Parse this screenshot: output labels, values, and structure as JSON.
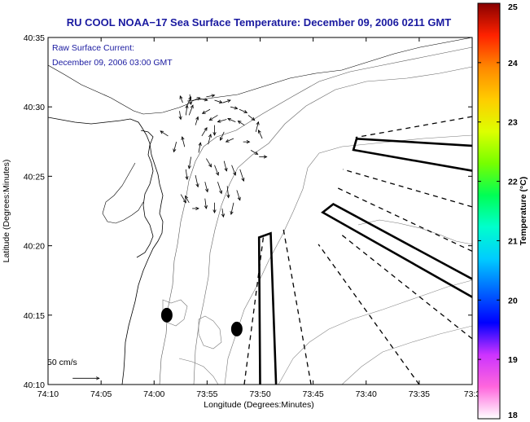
{
  "chart_data": {
    "type": "scatter",
    "title": "RU COOL  NOAA−17  Sea Surface Temperature:  December 09, 2006 0211 GMT",
    "annotation_lines": [
      "Raw Surface Current:",
      "December 09, 2006 03:00 GMT"
    ],
    "xlabel": "Longitude (Degrees:Minutes)",
    "ylabel": "Latitude (Degrees:Minutes)",
    "xlim": [
      -74.1667,
      -73.5
    ],
    "ylim": [
      40.1667,
      40.5833
    ],
    "x_ticks": [
      {
        "value": -74.1667,
        "label": "74:10"
      },
      {
        "value": -74.0833,
        "label": "74:05"
      },
      {
        "value": -74.0,
        "label": "74:00"
      },
      {
        "value": -73.9167,
        "label": "73:55"
      },
      {
        "value": -73.8333,
        "label": "73:50"
      },
      {
        "value": -73.75,
        "label": "73:45"
      },
      {
        "value": -73.6667,
        "label": "73:40"
      },
      {
        "value": -73.5833,
        "label": "73:35"
      },
      {
        "value": -73.5,
        "label": "73:3"
      }
    ],
    "y_ticks": [
      {
        "value": 40.1667,
        "label": "40:10"
      },
      {
        "value": 40.25,
        "label": "40:15"
      },
      {
        "value": 40.3333,
        "label": "40:20"
      },
      {
        "value": 40.4167,
        "label": "40:25"
      },
      {
        "value": 40.5,
        "label": "40:30"
      },
      {
        "value": 40.5833,
        "label": "40:35"
      }
    ],
    "colorbar": {
      "label": "Temperature (°C)",
      "range": [
        18,
        25
      ],
      "ticks": [
        "18",
        "19",
        "20",
        "21",
        "22",
        "23",
        "24",
        "25"
      ],
      "colors": [
        "#ffffff",
        "#ff66dd",
        "#cc33ff",
        "#0000ff",
        "#0066ff",
        "#00ccff",
        "#00ffcc",
        "#00ff55",
        "#77ff00",
        "#ddff00",
        "#ffcc00",
        "#ff8800",
        "#ff2200",
        "#880000"
      ]
    },
    "scale_arrow_label": "50 cm/s",
    "scale_arrow": {
      "x": -74.128,
      "y": 40.1742,
      "u": 0.0417,
      "v": 0
    },
    "buoys": [
      {
        "lon": -73.98,
        "lat": 40.25
      },
      {
        "lon": -73.87,
        "lat": 40.2333
      }
    ],
    "outer_box": [
      [
        -73.9633,
        40.2417
      ],
      [
        -73.86,
        40.2417
      ],
      [
        -73.86,
        40.2333
      ],
      [
        -73.9633,
        40.2333
      ]
    ],
    "lanes": [
      {
        "style": "solid",
        "points": [
          [
            -73.8333,
            40.1667
          ],
          [
            -73.835,
            40.3433
          ],
          [
            -73.8167,
            40.3483
          ],
          [
            -73.8083,
            40.1667
          ]
        ]
      },
      {
        "style": "solid",
        "points": [
          [
            -73.5,
            40.2717
          ],
          [
            -73.735,
            40.3733
          ],
          [
            -73.7183,
            40.3833
          ],
          [
            -73.5,
            40.2933
          ]
        ]
      },
      {
        "style": "solid",
        "points": [
          [
            -73.5,
            40.4533
          ],
          [
            -73.6817,
            40.4617
          ],
          [
            -73.6867,
            40.4483
          ],
          [
            -73.5,
            40.4233
          ]
        ]
      },
      {
        "style": "dashed",
        "points": [
          [
            -73.8583,
            40.1667
          ],
          [
            -73.8283,
            40.3433
          ]
        ]
      },
      {
        "style": "dashed",
        "points": [
          [
            -73.7533,
            40.1667
          ],
          [
            -73.7967,
            40.3533
          ]
        ]
      },
      {
        "style": "dashed",
        "points": [
          [
            -73.5833,
            40.1667
          ],
          [
            -73.7417,
            40.335
          ]
        ]
      },
      {
        "style": "dashed",
        "points": [
          [
            -73.5,
            40.2217
          ],
          [
            -73.7083,
            40.3483
          ]
        ]
      },
      {
        "style": "dashed",
        "points": [
          [
            -73.5,
            40.3267
          ],
          [
            -73.7133,
            40.4033
          ]
        ]
      },
      {
        "style": "dashed",
        "points": [
          [
            -73.5,
            40.38
          ],
          [
            -73.7033,
            40.425
          ]
        ]
      },
      {
        "style": "dashed",
        "points": [
          [
            -73.5,
            40.4883
          ],
          [
            -73.6833,
            40.4633
          ]
        ]
      }
    ],
    "current_vectors": [
      {
        "x": -73.955,
        "y": 40.505,
        "u": -0.004,
        "v": 0.008
      },
      {
        "x": -73.948,
        "y": 40.502,
        "u": 0.006,
        "v": 0.01
      },
      {
        "x": -73.94,
        "y": 40.507,
        "u": 0.012,
        "v": 0.004
      },
      {
        "x": -73.93,
        "y": 40.51,
        "u": 0.014,
        "v": -0.002
      },
      {
        "x": -73.918,
        "y": 40.512,
        "u": 0.013,
        "v": 0.002
      },
      {
        "x": -73.905,
        "y": 40.508,
        "u": 0.012,
        "v": -0.003
      },
      {
        "x": -73.892,
        "y": 40.505,
        "u": 0.012,
        "v": 0.003
      },
      {
        "x": -73.88,
        "y": 40.5,
        "u": 0.011,
        "v": -0.002
      },
      {
        "x": -73.866,
        "y": 40.497,
        "u": 0.012,
        "v": -0.004
      },
      {
        "x": -73.852,
        "y": 40.49,
        "u": 0.01,
        "v": -0.006
      },
      {
        "x": -73.912,
        "y": 40.497,
        "u": -0.012,
        "v": -0.005
      },
      {
        "x": -73.9,
        "y": 40.49,
        "u": -0.013,
        "v": -0.006
      },
      {
        "x": -73.886,
        "y": 40.485,
        "u": -0.014,
        "v": -0.003
      },
      {
        "x": -73.872,
        "y": 40.482,
        "u": -0.012,
        "v": 0.004
      },
      {
        "x": -73.858,
        "y": 40.478,
        "u": -0.01,
        "v": 0.005
      },
      {
        "x": -73.84,
        "y": 40.47,
        "u": 0.004,
        "v": 0.012
      },
      {
        "x": -73.83,
        "y": 40.462,
        "u": -0.006,
        "v": 0.01
      },
      {
        "x": -73.905,
        "y": 40.478,
        "u": 0.0,
        "v": -0.012
      },
      {
        "x": -73.89,
        "y": 40.47,
        "u": -0.006,
        "v": -0.01
      },
      {
        "x": -73.875,
        "y": 40.462,
        "u": -0.012,
        "v": -0.004
      },
      {
        "x": -73.86,
        "y": 40.458,
        "u": 0.01,
        "v": 0.0
      },
      {
        "x": -73.848,
        "y": 40.448,
        "u": 0.011,
        "v": -0.005
      },
      {
        "x": -73.835,
        "y": 40.44,
        "u": 0.012,
        "v": 0.0
      },
      {
        "x": -73.935,
        "y": 40.478,
        "u": 0.004,
        "v": 0.01
      },
      {
        "x": -73.925,
        "y": 40.465,
        "u": 0.008,
        "v": 0.01
      },
      {
        "x": -73.915,
        "y": 40.455,
        "u": 0.004,
        "v": 0.012
      },
      {
        "x": -73.978,
        "y": 40.465,
        "u": -0.012,
        "v": 0.006
      },
      {
        "x": -73.965,
        "y": 40.458,
        "u": -0.004,
        "v": -0.012
      },
      {
        "x": -73.952,
        "y": 40.452,
        "u": -0.004,
        "v": 0.012
      },
      {
        "x": -73.942,
        "y": 40.44,
        "u": -0.003,
        "v": -0.014
      },
      {
        "x": -73.93,
        "y": 40.445,
        "u": 0.003,
        "v": 0.012
      },
      {
        "x": -73.918,
        "y": 40.438,
        "u": 0.008,
        "v": -0.01
      },
      {
        "x": -73.905,
        "y": 40.43,
        "u": 0.006,
        "v": -0.012
      },
      {
        "x": -73.89,
        "y": 40.435,
        "u": 0.004,
        "v": -0.012
      },
      {
        "x": -73.878,
        "y": 40.43,
        "u": 0.006,
        "v": -0.012
      },
      {
        "x": -73.865,
        "y": 40.425,
        "u": 0.006,
        "v": -0.014
      },
      {
        "x": -73.95,
        "y": 40.425,
        "u": 0.002,
        "v": -0.012
      },
      {
        "x": -73.935,
        "y": 40.418,
        "u": 0.004,
        "v": -0.014
      },
      {
        "x": -73.92,
        "y": 40.41,
        "u": 0.004,
        "v": -0.012
      },
      {
        "x": -73.9,
        "y": 40.41,
        "u": 0.006,
        "v": -0.014
      },
      {
        "x": -73.885,
        "y": 40.405,
        "u": 0.002,
        "v": -0.014
      },
      {
        "x": -73.87,
        "y": 40.4,
        "u": 0.005,
        "v": -0.012
      },
      {
        "x": -73.958,
        "y": 40.395,
        "u": 0.008,
        "v": -0.01
      },
      {
        "x": -73.945,
        "y": 40.385,
        "u": -0.006,
        "v": 0.008
      },
      {
        "x": -73.94,
        "y": 40.378,
        "u": 0.01,
        "v": 0.0
      },
      {
        "x": -73.92,
        "y": 40.39,
        "u": 0.002,
        "v": -0.012
      },
      {
        "x": -73.905,
        "y": 40.385,
        "u": 0.0,
        "v": -0.012
      },
      {
        "x": -73.893,
        "y": 40.378,
        "u": 0.002,
        "v": -0.01
      },
      {
        "x": -73.875,
        "y": 40.385,
        "u": -0.004,
        "v": -0.014
      },
      {
        "x": -73.95,
        "y": 40.49,
        "u": 0.002,
        "v": 0.012
      },
      {
        "x": -73.945,
        "y": 40.49,
        "u": 0.006,
        "v": 0.012
      },
      {
        "x": -73.96,
        "y": 40.495,
        "u": 0.002,
        "v": -0.01
      },
      {
        "x": -73.944,
        "y": 40.515,
        "u": 0.002,
        "v": -0.012
      }
    ]
  }
}
